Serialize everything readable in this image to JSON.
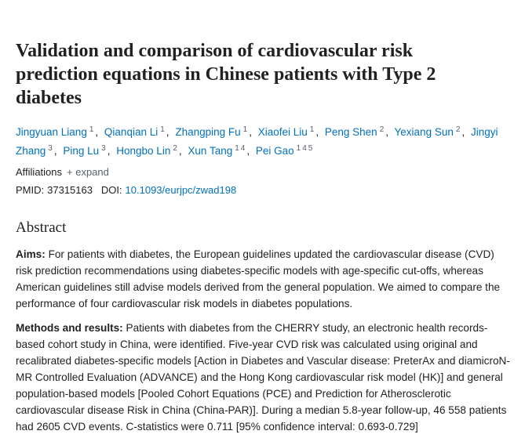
{
  "header": {
    "title": "Validation and comparison of cardiovascular risk prediction equations in Chinese patients with Type 2 diabetes"
  },
  "authors": [
    {
      "name": "Jingyuan Liang",
      "affiliations": [
        "1"
      ]
    },
    {
      "name": "Qianqian Li",
      "affiliations": [
        "1"
      ]
    },
    {
      "name": "Zhangping Fu",
      "affiliations": [
        "1"
      ]
    },
    {
      "name": "Xiaofei Liu",
      "affiliations": [
        "1"
      ]
    },
    {
      "name": "Peng Shen",
      "affiliations": [
        "2"
      ]
    },
    {
      "name": "Yexiang Sun",
      "affiliations": [
        "2"
      ]
    },
    {
      "name": "Jingyi Zhang",
      "affiliations": [
        "3"
      ]
    },
    {
      "name": "Ping Lu",
      "affiliations": [
        "3"
      ]
    },
    {
      "name": "Hongbo Lin",
      "affiliations": [
        "2"
      ]
    },
    {
      "name": "Xun Tang",
      "affiliations": [
        "1",
        "4"
      ]
    },
    {
      "name": "Pei Gao",
      "affiliations": [
        "1",
        "4",
        "5"
      ]
    }
  ],
  "affiliations": {
    "label": "Affiliations",
    "expand": "+ expand"
  },
  "ids": {
    "pmid_label": "PMID:",
    "pmid": "37315163",
    "doi_label": "DOI:",
    "doi": "10.1093/eurjpc/zwad198"
  },
  "abstract": {
    "heading": "Abstract",
    "sections": [
      {
        "label": "Aims:",
        "text": "For patients with diabetes, the European guidelines updated the cardiovascular disease (CVD) risk prediction recommendations using diabetes-specific models with age-specific cut-offs, whereas American guidelines still advise models derived from the general population. We aimed to compare the performance of four cardiovascular risk models in diabetes populations."
      },
      {
        "label": "Methods and results:",
        "text": "Patients with diabetes from the CHERRY study, an electronic health records-based cohort study in China, were identified. Five-year CVD risk was calculated using original and recalibrated diabetes-specific models [Action in Diabetes and Vascular disease: PreterAx and diamicroN-MR Controlled Evaluation (ADVANCE) and the Hong Kong cardiovascular risk model (HK)] and general population-based models [Pooled Cohort Equations (PCE) and Prediction for Atherosclerotic cardiovascular disease Risk in China (China-PAR)]. During a median 5.8-year follow-up, 46 558 patients had 2605 CVD events. C-statistics were 0.711 [95% confidence interval: 0.693-0.729]"
      }
    ]
  }
}
